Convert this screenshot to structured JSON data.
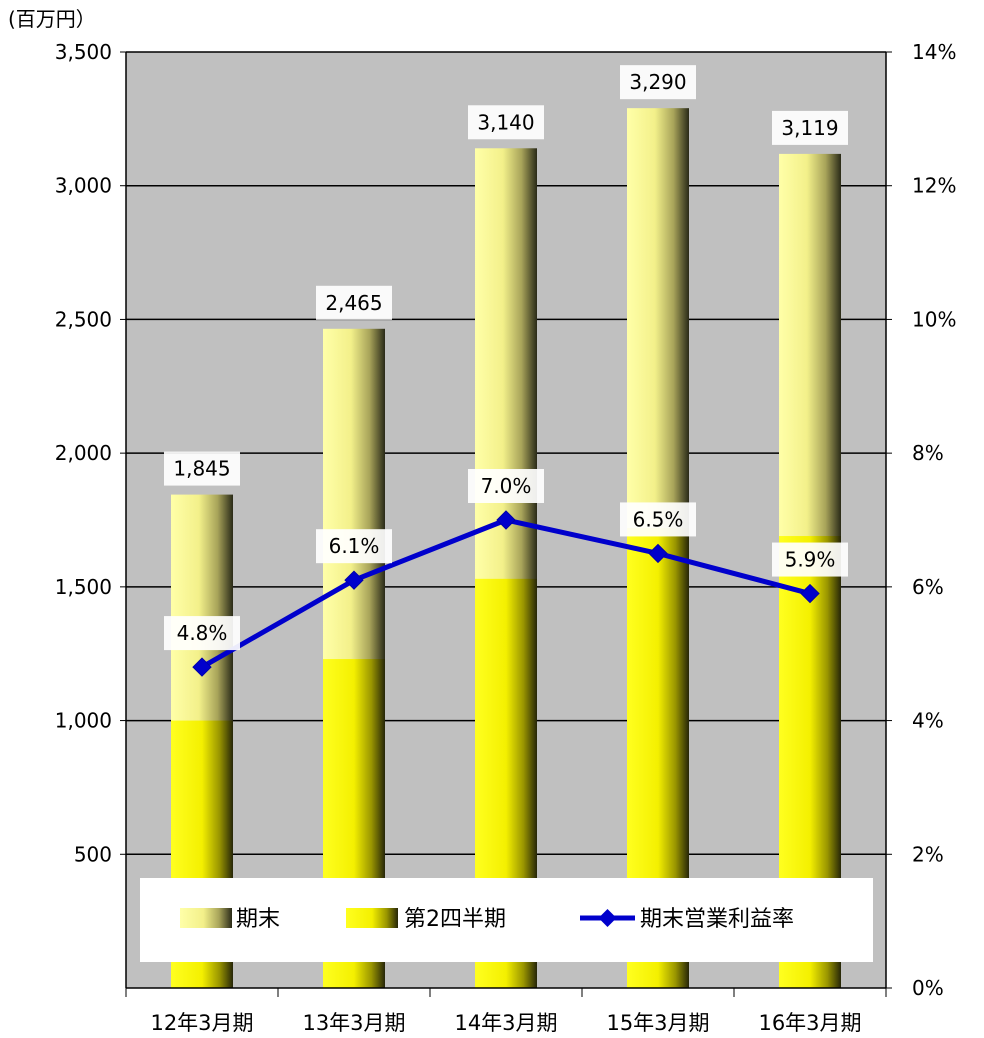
{
  "chart_data": {
    "type": "bar",
    "unit_label": "(百万円）",
    "categories": [
      "12年3月期",
      "13年3月期",
      "14年3月期",
      "15年3月期",
      "16年3月期"
    ],
    "series": [
      {
        "name": "期末",
        "type": "bar",
        "axis": "left",
        "values": [
          1845,
          2465,
          3140,
          3290,
          3119
        ],
        "labels": [
          "1,845",
          "2,465",
          "3,140",
          "3,290",
          "3,119"
        ]
      },
      {
        "name": "第2四半期",
        "type": "bar",
        "axis": "left",
        "values": [
          1000,
          1230,
          1530,
          1720,
          1690
        ]
      },
      {
        "name": "期末営業利益率",
        "type": "line",
        "axis": "right",
        "values": [
          4.8,
          6.1,
          7.0,
          6.5,
          5.9
        ],
        "labels": [
          "4.8%",
          "6.1%",
          "7.0%",
          "6.5%",
          "5.9%"
        ]
      }
    ],
    "left_axis": {
      "range": [
        0,
        3500
      ],
      "ticks": [
        "500",
        "1,000",
        "1,500",
        "2,000",
        "2,500",
        "3,000",
        "3,500"
      ]
    },
    "right_axis": {
      "range": [
        0,
        14
      ],
      "ticks": [
        "0%",
        "2%",
        "4%",
        "6%",
        "8%",
        "10%",
        "12%",
        "14%"
      ]
    },
    "grid": true,
    "legend_position": "bottom-inside",
    "colors": {
      "plot_bg": "#c0c0c0",
      "line": "#0000cc",
      "bar_light": "#ffff99",
      "bar_yellow": "#ffff00",
      "bar_dark": "#2a2a10"
    }
  }
}
